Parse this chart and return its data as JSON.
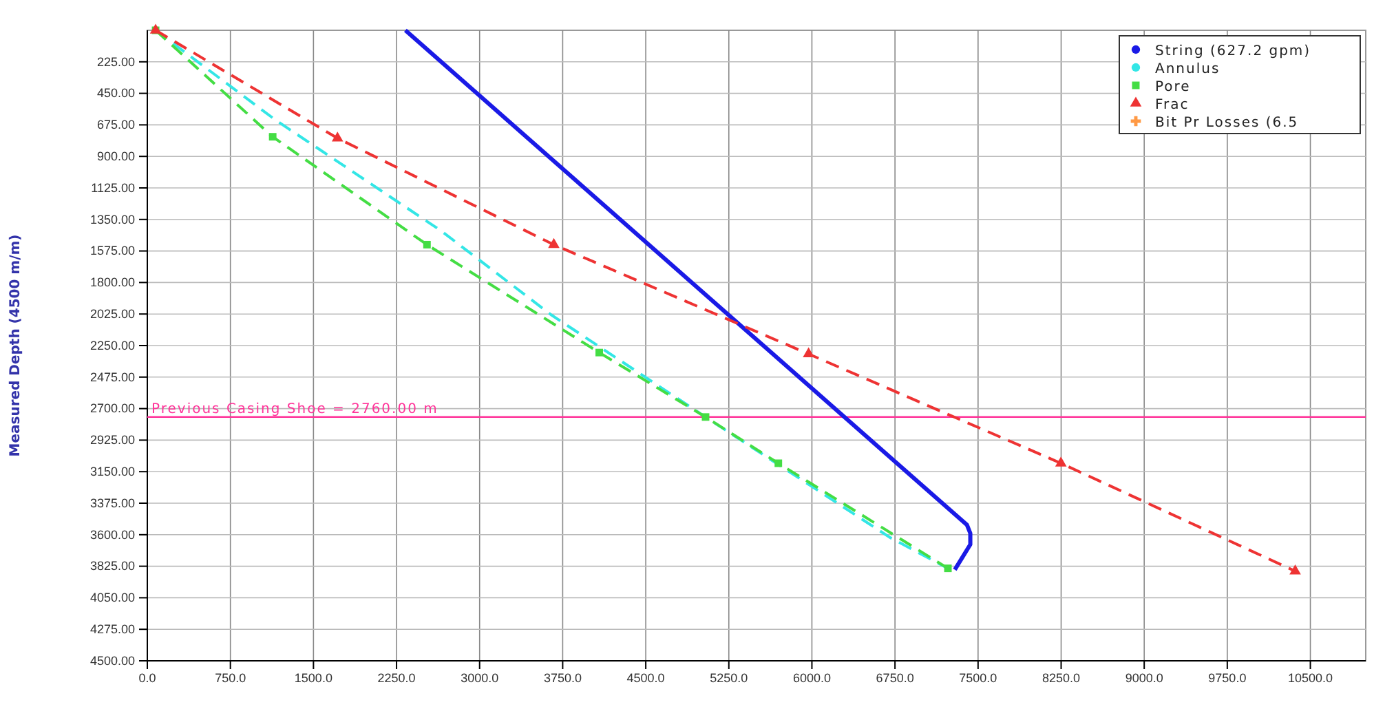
{
  "chart_data": {
    "type": "line",
    "ylabel": "Measured Depth (4500 m/m)",
    "xlim": [
      0,
      11000
    ],
    "ylim": [
      4500,
      0
    ],
    "xticks": [
      {
        "value": 0,
        "label": "0.0"
      },
      {
        "value": 750,
        "label": "750.0"
      },
      {
        "value": 1500,
        "label": "1500.0"
      },
      {
        "value": 2250,
        "label": "2250.0"
      },
      {
        "value": 3000,
        "label": "3000.0"
      },
      {
        "value": 3750,
        "label": "3750.0"
      },
      {
        "value": 4500,
        "label": "4500.0"
      },
      {
        "value": 5250,
        "label": "5250.0"
      },
      {
        "value": 6000,
        "label": "6000.0"
      },
      {
        "value": 6750,
        "label": "6750.0"
      },
      {
        "value": 7500,
        "label": "7500.0"
      },
      {
        "value": 8250,
        "label": "8250.0"
      },
      {
        "value": 9000,
        "label": "9000.0"
      },
      {
        "value": 9750,
        "label": "9750.0"
      },
      {
        "value": 10500,
        "label": "10500.0"
      }
    ],
    "yticks": [
      {
        "value": 225,
        "label": "225.00"
      },
      {
        "value": 450,
        "label": "450.00"
      },
      {
        "value": 675,
        "label": "675.00"
      },
      {
        "value": 900,
        "label": "900.00"
      },
      {
        "value": 1125,
        "label": "1125.00"
      },
      {
        "value": 1350,
        "label": "1350.00"
      },
      {
        "value": 1575,
        "label": "1575.00"
      },
      {
        "value": 1800,
        "label": "1800.00"
      },
      {
        "value": 2025,
        "label": "2025.00"
      },
      {
        "value": 2250,
        "label": "2250.00"
      },
      {
        "value": 2475,
        "label": "2475.00"
      },
      {
        "value": 2700,
        "label": "2700.00"
      },
      {
        "value": 2925,
        "label": "2925.00"
      },
      {
        "value": 3150,
        "label": "3150.00"
      },
      {
        "value": 3375,
        "label": "3375.00"
      },
      {
        "value": 3600,
        "label": "3600.00"
      },
      {
        "value": 3825,
        "label": "3825.00"
      },
      {
        "value": 4050,
        "label": "4050.00"
      },
      {
        "value": 4275,
        "label": "4275.00"
      },
      {
        "value": 4500,
        "label": "4500.00"
      }
    ],
    "grid": true,
    "legend": "top right",
    "ref_lines": [
      {
        "axis": "y",
        "value": 2760,
        "label": "Previous Casing Shoe = 2760.00 m",
        "color": "#ff3399"
      }
    ],
    "series": [
      {
        "name": "String (627.2 gpm)",
        "color": "#1a1ae6",
        "marker": "none",
        "line_style": "solid",
        "x": [
          2330,
          7400,
          7430,
          7430,
          7290
        ],
        "values": [
          0,
          3530,
          3590,
          3670,
          3850
        ]
      },
      {
        "name": "Annulus",
        "color": "#33e6e6",
        "marker": "none",
        "line_style": "dashed",
        "x": [
          75,
          1157,
          2650,
          3645,
          5040,
          6705,
          7228
        ],
        "values": [
          0,
          640,
          1430,
          2030,
          2760,
          3620,
          3840
        ]
      },
      {
        "name": "Pore",
        "color": "#44dd44",
        "marker": "square",
        "line_style": "dashed",
        "x": [
          75,
          1132,
          2525,
          4080,
          5040,
          5697,
          7228
        ],
        "values": [
          0,
          760,
          1530,
          2300,
          2760,
          3090,
          3840
        ]
      },
      {
        "name": "Frac",
        "color": "#ee3333",
        "marker": "triangle",
        "line_style": "dashed",
        "x": [
          75,
          1717,
          3670,
          5970,
          8248,
          10363
        ],
        "values": [
          0,
          770,
          1530,
          2310,
          3090,
          3860
        ]
      },
      {
        "name": "Bit Pr Losses (6.5",
        "color": "#ff9944",
        "marker": "cross",
        "line_style": "solid"
      }
    ]
  }
}
